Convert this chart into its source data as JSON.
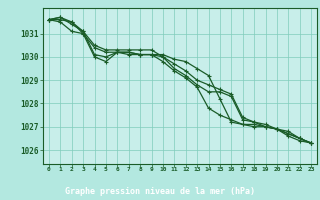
{
  "title": "Graphe pression niveau de la mer (hPa)",
  "bg_color": "#b3e8e0",
  "plot_bg_color": "#c8eeea",
  "grid_color": "#80ccbb",
  "line_color": "#1a5c28",
  "label_bg_color": "#2d6b3a",
  "label_text_color": "#ffffff",
  "x_ticks": [
    0,
    1,
    2,
    3,
    4,
    5,
    6,
    7,
    8,
    9,
    10,
    11,
    12,
    13,
    14,
    15,
    16,
    17,
    18,
    19,
    20,
    21,
    22,
    23
  ],
  "y_ticks": [
    1026,
    1027,
    1028,
    1029,
    1030,
    1031
  ],
  "ylim": [
    1025.4,
    1032.1
  ],
  "xlim": [
    -0.5,
    23.5
  ],
  "series": [
    [
      1031.6,
      1031.7,
      1031.4,
      1031.1,
      1030.1,
      1030.0,
      1030.2,
      1030.2,
      1030.1,
      1030.1,
      1030.1,
      1029.9,
      1029.8,
      1029.5,
      1029.2,
      1028.2,
      1027.2,
      1027.1,
      1027.1,
      1027.0,
      1026.9,
      1026.6,
      1026.4,
      1026.3
    ],
    [
      1031.6,
      1031.7,
      1031.5,
      1031.1,
      1030.5,
      1030.3,
      1030.3,
      1030.3,
      1030.3,
      1030.3,
      1030.0,
      1029.7,
      1029.4,
      1029.0,
      1028.8,
      1028.6,
      1028.4,
      1027.4,
      1027.2,
      1027.1,
      1026.9,
      1026.8,
      1026.5,
      1026.3
    ],
    [
      1031.6,
      1031.5,
      1031.1,
      1031.0,
      1030.4,
      1030.2,
      1030.2,
      1030.2,
      1030.1,
      1030.1,
      1030.0,
      1029.5,
      1029.2,
      1028.8,
      1028.5,
      1028.5,
      1028.3,
      1027.3,
      1027.2,
      1027.0,
      1026.9,
      1026.7,
      1026.5,
      1026.3
    ],
    [
      1031.6,
      1031.6,
      1031.5,
      1031.0,
      1030.0,
      1029.8,
      1030.2,
      1030.1,
      1030.1,
      1030.1,
      1029.8,
      1029.4,
      1029.1,
      1028.7,
      1027.8,
      1027.5,
      1027.3,
      1027.1,
      1027.0,
      1027.0,
      1026.9,
      1026.7,
      1026.5,
      1026.3
    ]
  ]
}
